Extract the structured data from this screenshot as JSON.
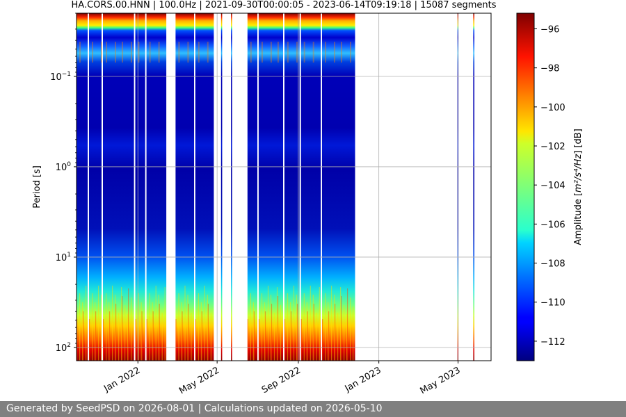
{
  "chart_data": {
    "type": "heatmap",
    "title": "HA.CORS.00.HNN | 100.0Hz | 2021-09-30T00:00:05 - 2023-06-14T09:19:18 | 15087 segments",
    "ylabel": "Period [s]",
    "y_scale": "log",
    "y_inverted": true,
    "ylim": [
      0.02,
      140
    ],
    "y_ticks": [
      {
        "value": 0.1,
        "base": "10",
        "exp": "−1"
      },
      {
        "value": 1,
        "base": "10",
        "exp": "0"
      },
      {
        "value": 10,
        "base": "10",
        "exp": "1"
      },
      {
        "value": 100,
        "base": "10",
        "exp": "2"
      }
    ],
    "xlim": [
      "2021-09-30",
      "2023-06-20"
    ],
    "x_ticks": [
      {
        "date": "2022-01-01",
        "label": "Jan 2022"
      },
      {
        "date": "2022-05-01",
        "label": "May 2022"
      },
      {
        "date": "2022-09-01",
        "label": "Sep 2022"
      },
      {
        "date": "2023-01-01",
        "label": "Jan 2023"
      },
      {
        "date": "2023-05-01",
        "label": "May 2023"
      }
    ],
    "grid": true,
    "colorbar": {
      "label_prefix": "Amplitude [",
      "label_math": "m²/s⁴/Hz",
      "label_suffix": "] [dB]",
      "range": [
        -113,
        -95.2
      ],
      "colormap": "jet",
      "ticks": [
        -96,
        -98,
        -100,
        -102,
        -104,
        -106,
        -108,
        -110,
        -112
      ]
    },
    "data_periods": [
      [
        "2021-09-30",
        "2021-10-17"
      ],
      [
        "2021-10-19",
        "2021-11-07"
      ],
      [
        "2021-11-09",
        "2021-12-26"
      ],
      [
        "2021-12-28",
        "2022-01-12"
      ],
      [
        "2022-01-14",
        "2022-02-13"
      ],
      [
        "2022-02-27",
        "2022-03-27"
      ],
      [
        "2022-03-29",
        "2022-04-26"
      ],
      [
        "2022-05-07",
        "2022-05-08"
      ],
      [
        "2022-05-22",
        "2022-05-23"
      ],
      [
        "2022-06-16",
        "2022-07-01"
      ],
      [
        "2022-07-03",
        "2022-08-09"
      ],
      [
        "2022-08-11",
        "2022-09-03"
      ],
      [
        "2022-09-05",
        "2022-10-05"
      ],
      [
        "2022-10-07",
        "2022-11-26"
      ],
      [
        "2023-04-30",
        "2023-05-01"
      ],
      [
        "2023-05-24",
        "2023-05-25"
      ]
    ]
  },
  "footer": {
    "text": "Generated by SeedPSD on 2026-08-01 | Calculations updated on 2026-05-10"
  }
}
